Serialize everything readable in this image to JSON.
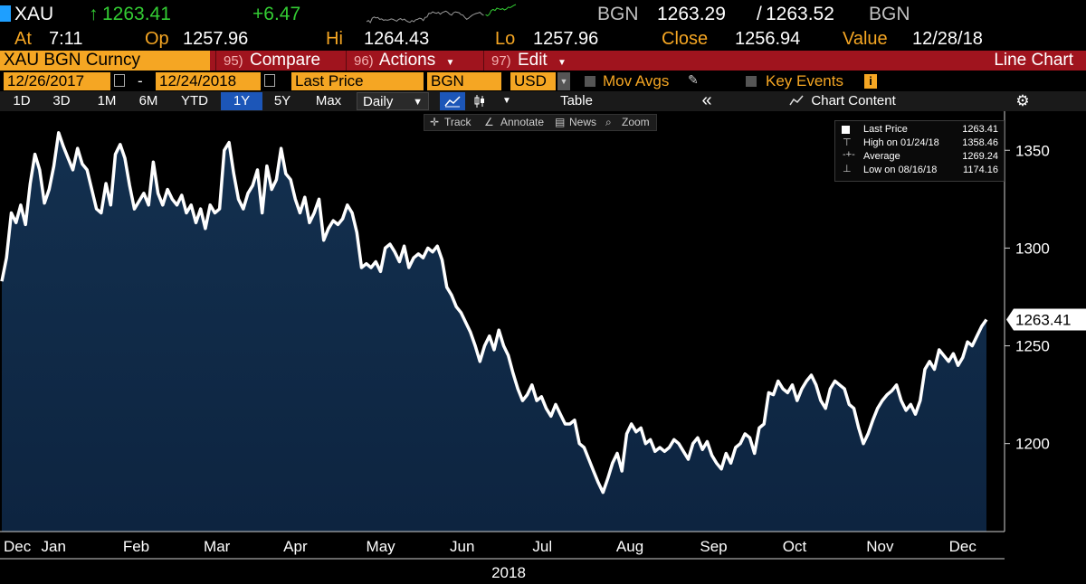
{
  "quote": {
    "ticker": "XAU",
    "arrow": "↑",
    "last": "1263.41",
    "change": "+6.47",
    "source": "BGN",
    "bid": "1263.29",
    "sep": "/",
    "ask": "1263.52",
    "source2": "BGN",
    "at_label": "At",
    "at_time": "7:11",
    "op_label": "Op",
    "op": "1257.96",
    "hi_label": "Hi",
    "hi": "1264.43",
    "lo_label": "Lo",
    "lo": "1257.96",
    "close_label": "Close",
    "close": "1256.94",
    "value_label": "Value",
    "value_date": "12/28/18"
  },
  "command_bar": {
    "security": "XAU BGN Curncy",
    "compare_num": "95)",
    "compare": "Compare",
    "actions_num": "96)",
    "actions": "Actions",
    "edit_num": "97)",
    "edit": "Edit",
    "title": "Line Chart"
  },
  "params": {
    "start_date": "12/26/2017",
    "dash": "-",
    "end_date": "12/24/2018",
    "field": "Last Price",
    "pricing_source": "BGN",
    "currency": "USD",
    "mov_avgs": "Mov Avgs",
    "key_events": "Key Events",
    "info": "i"
  },
  "toolbar": {
    "periods": [
      "1D",
      "3D",
      "1M",
      "6M",
      "YTD",
      "1Y",
      "5Y",
      "Max"
    ],
    "active_period": "1Y",
    "frequency": "Daily",
    "table": "Table",
    "collapse": "«",
    "chart_content": "Chart Content",
    "settings": "⚙"
  },
  "chart_tools": {
    "track": "Track",
    "annotate": "Annotate",
    "news": "News",
    "zoom": "Zoom"
  },
  "legend": {
    "rows": [
      {
        "label": "Last Price",
        "value": "1263.41"
      },
      {
        "label": "High on 01/24/18",
        "value": "1358.46"
      },
      {
        "label": "Average",
        "value": "1269.24"
      },
      {
        "label": "Low on 08/16/18",
        "value": "1174.16"
      }
    ]
  },
  "colors": {
    "line": "#ffffff",
    "area_top": "#13304f",
    "area_bottom": "#0d2440",
    "amber": "#f5a623",
    "up": "#33cc33",
    "command_bar": "#a0141e",
    "active_tab": "#1c56b8"
  },
  "chart_data": {
    "type": "area",
    "title": "",
    "xlabel": "2018",
    "ylabel": "",
    "ylim": [
      1155,
      1370
    ],
    "y_ticks": [
      1200,
      1250,
      1300,
      1350
    ],
    "month_labels": [
      "Dec",
      "Jan",
      "Feb",
      "Mar",
      "Apr",
      "May",
      "Jun",
      "Jul",
      "Aug",
      "Sep",
      "Oct",
      "Nov",
      "Dec"
    ],
    "last_value_label": "1263.41",
    "series": [
      {
        "values": [
          1283,
          1295,
          1318,
          1313,
          1322,
          1312,
          1333,
          1348,
          1340,
          1323,
          1330,
          1342,
          1359,
          1352,
          1346,
          1340,
          1351,
          1343,
          1340,
          1330,
          1320,
          1318,
          1333,
          1322,
          1348,
          1353,
          1346,
          1332,
          1320,
          1324,
          1328,
          1322,
          1344,
          1328,
          1322,
          1330,
          1325,
          1322,
          1327,
          1318,
          1322,
          1313,
          1320,
          1310,
          1322,
          1318,
          1320,
          1350,
          1354,
          1338,
          1325,
          1320,
          1328,
          1332,
          1340,
          1318,
          1342,
          1330,
          1335,
          1351,
          1338,
          1335,
          1325,
          1318,
          1326,
          1313,
          1318,
          1325,
          1304,
          1310,
          1314,
          1312,
          1315,
          1322,
          1318,
          1308,
          1290,
          1292,
          1290,
          1293,
          1288,
          1300,
          1302,
          1298,
          1293,
          1301,
          1290,
          1295,
          1297,
          1295,
          1300,
          1298,
          1301,
          1294,
          1280,
          1276,
          1270,
          1267,
          1262,
          1257,
          1250,
          1242,
          1250,
          1255,
          1248,
          1258,
          1250,
          1245,
          1236,
          1228,
          1222,
          1225,
          1230,
          1222,
          1224,
          1218,
          1214,
          1220,
          1215,
          1210,
          1210,
          1212,
          1200,
          1198,
          1192,
          1186,
          1180,
          1175,
          1182,
          1190,
          1195,
          1186,
          1205,
          1210,
          1206,
          1208,
          1200,
          1202,
          1196,
          1198,
          1196,
          1198,
          1202,
          1200,
          1196,
          1192,
          1200,
          1203,
          1197,
          1201,
          1194,
          1190,
          1187,
          1195,
          1190,
          1198,
          1200,
          1205,
          1203,
          1195,
          1208,
          1210,
          1226,
          1225,
          1232,
          1228,
          1226,
          1230,
          1222,
          1228,
          1232,
          1235,
          1230,
          1222,
          1218,
          1228,
          1232,
          1230,
          1228,
          1220,
          1218,
          1208,
          1200,
          1205,
          1212,
          1218,
          1222,
          1225,
          1227,
          1230,
          1222,
          1217,
          1220,
          1215,
          1222,
          1238,
          1242,
          1238,
          1248,
          1245,
          1242,
          1246,
          1240,
          1244,
          1252,
          1250,
          1255,
          1260,
          1263.41
        ]
      }
    ]
  }
}
